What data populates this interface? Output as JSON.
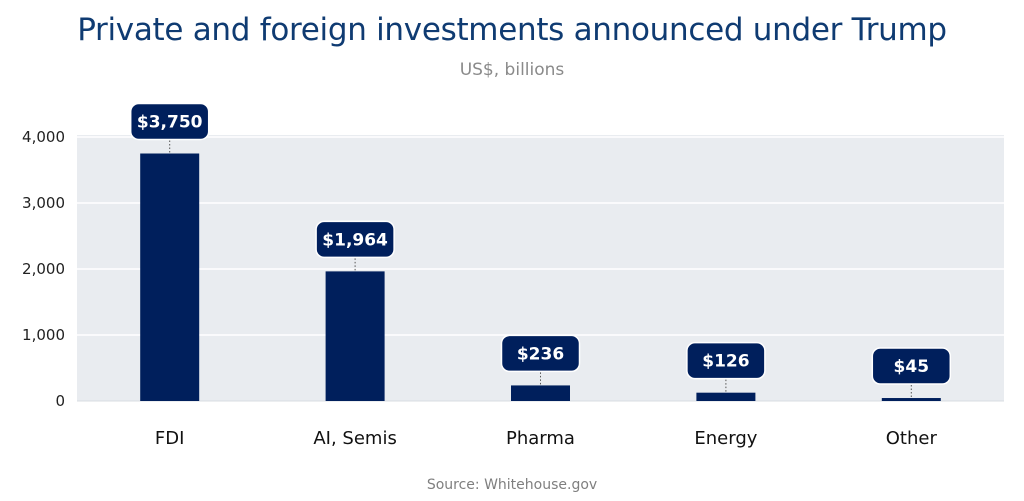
{
  "title": "Private and foreign investments announced under Trump",
  "subtitle": "US$, billions",
  "source": "Source: Whitehouse.gov",
  "colors": {
    "bar": "#001f5c",
    "plot_background": "#e9ecf0",
    "title": "#0f3b72",
    "gridline": "#ffffff"
  },
  "chart_data": {
    "type": "bar",
    "title": "Private and foreign investments announced under Trump",
    "subtitle": "US$, billions",
    "categories": [
      "FDI",
      "AI, Semis",
      "Pharma",
      "Energy",
      "Other"
    ],
    "values": [
      3750,
      1964,
      236,
      126,
      45
    ],
    "data_labels": [
      "$3,750",
      "$1,964",
      "$236",
      "$126",
      "$45"
    ],
    "ylim": [
      0,
      4000
    ],
    "yticks": [
      0,
      1000,
      2000,
      3000,
      4000
    ],
    "ytick_labels": [
      "0",
      "1,000",
      "2,000",
      "3,000",
      "4,000"
    ],
    "xlabel": "",
    "ylabel": "",
    "grid": true,
    "legend": "none"
  }
}
